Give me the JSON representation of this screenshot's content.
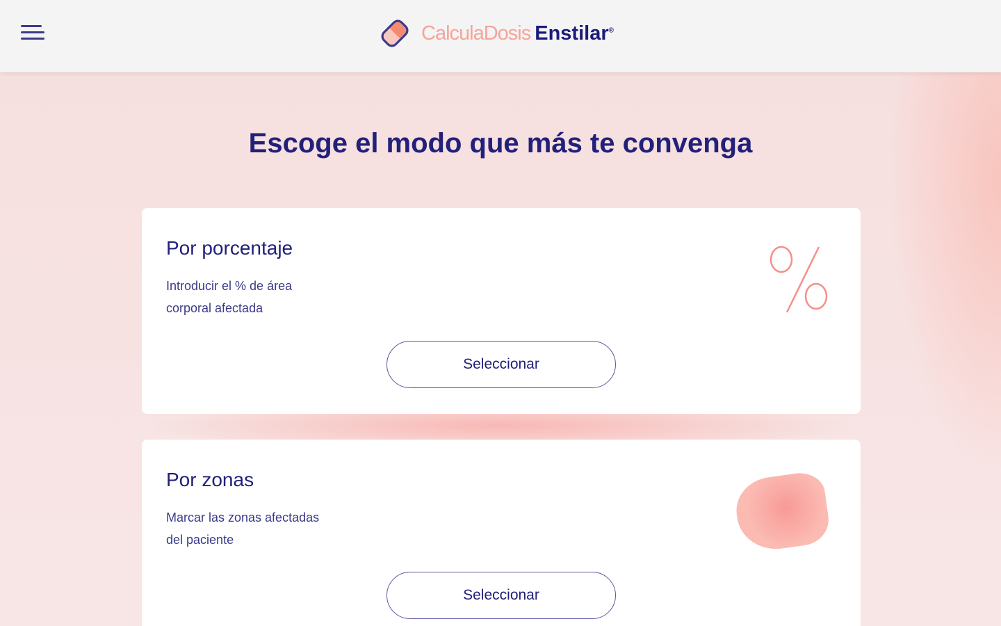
{
  "header": {
    "logo_light": "CalculaDosis",
    "logo_bold": "Enstilar",
    "logo_mark": "®",
    "menu_icon": "hamburger-icon"
  },
  "main": {
    "title": "Escoge el modo que más te convenga",
    "cards": [
      {
        "title": "Por porcentaje",
        "description": "Introducir el % de área corporal afectada",
        "button": "Seleccionar",
        "icon": "percent-icon"
      },
      {
        "title": "Por zonas",
        "description": "Marcar las zonas afectadas del paciente",
        "button": "Seleccionar",
        "icon": "body-zone-blob-icon"
      }
    ]
  },
  "colors": {
    "primary": "#22207a",
    "accent": "#f6a49a"
  }
}
